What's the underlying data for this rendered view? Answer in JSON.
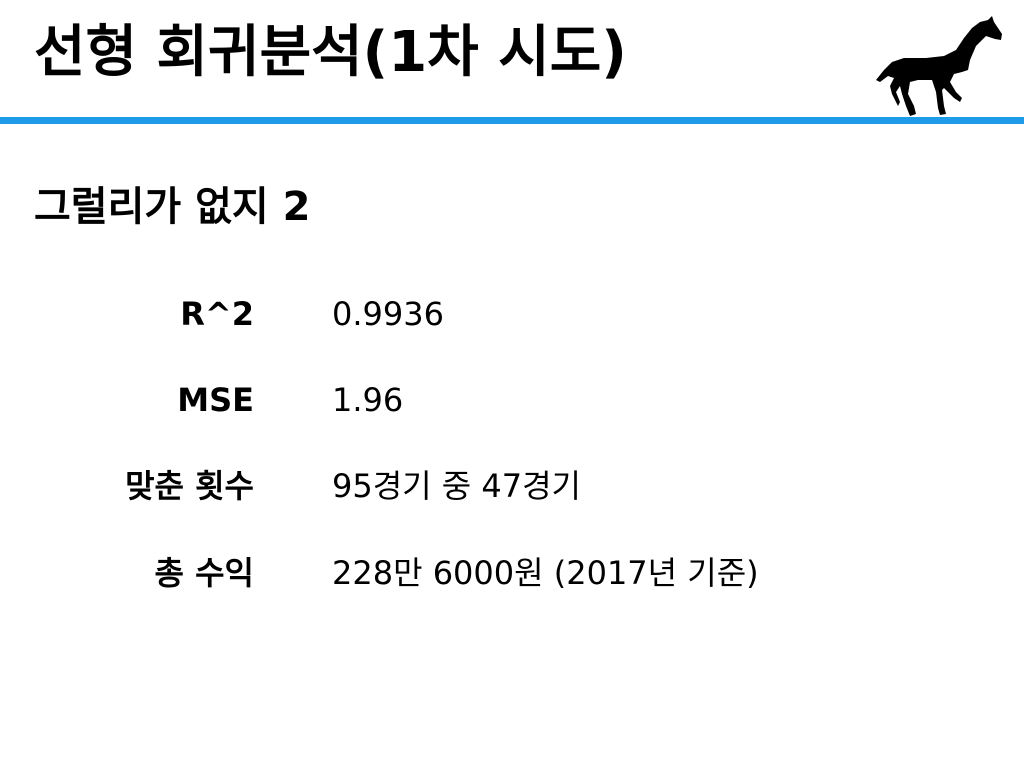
{
  "slide": {
    "title": "선형 회귀분석(1차 시도)",
    "subtitle": "그럴리가 없지 2",
    "accent_color": "#1e9be9",
    "logo_icon": "horse-silhouette-icon",
    "metrics": [
      {
        "label": "R^2",
        "value": "0.9936"
      },
      {
        "label": "MSE",
        "value": "1.96"
      },
      {
        "label": "맞춘 횟수",
        "value": "95경기 중 47경기"
      },
      {
        "label": "총 수익",
        "value": "228만 6000원 (2017년 기준)"
      }
    ]
  }
}
